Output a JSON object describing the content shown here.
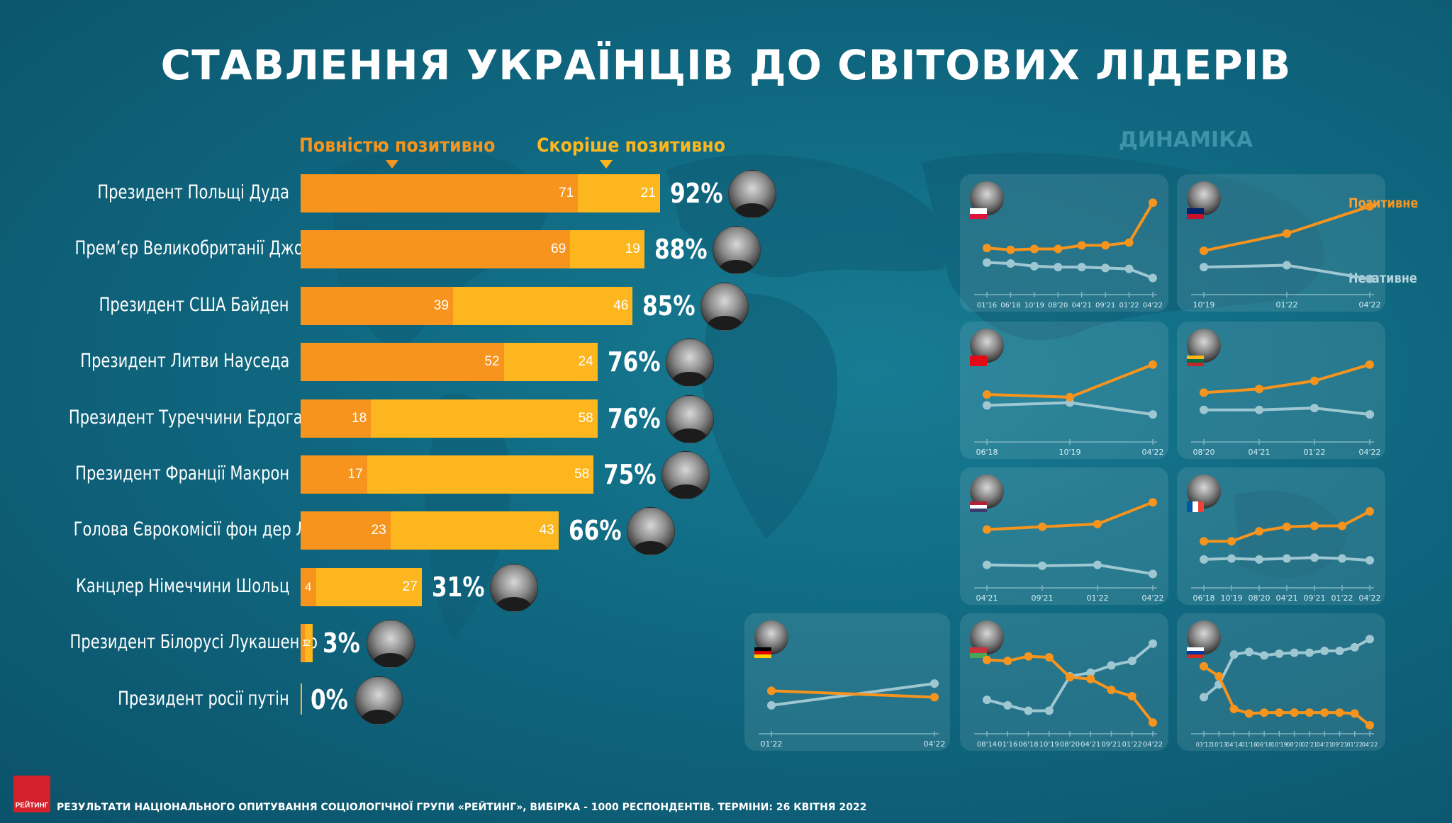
{
  "title": "СТАВЛЕННЯ УКРАЇНЦІВ ДО СВІТОВИХ ЛІДЕРІВ",
  "colors": {
    "fully_positive": "#f7941d",
    "rather_positive": "#fdb61e",
    "negative_line": "#9fc7d2",
    "positive_line": "#f7941d"
  },
  "chart_data": [
    {
      "type": "bar",
      "stacked": true,
      "orientation": "horizontal",
      "categories": [
        "Президент Польщі Дуда",
        "Прем’єр Великобританії Джонсон",
        "Президент США Байден",
        "Президент Литви Науседа",
        "Президент Туреччини Ердоган",
        "Президент Франції Макрон",
        "Голова Єврокомісії фон дер Ляєн",
        "Канцлер Німеччини Шольц",
        "Президент Білорусі Лукашенко",
        "Президент росії путін"
      ],
      "series": [
        {
          "name": "Повністю позитивно",
          "values": [
            71,
            69,
            39,
            52,
            18,
            17,
            23,
            4,
            1,
            0
          ]
        },
        {
          "name": "Скоріше позитивно",
          "values": [
            21,
            19,
            46,
            24,
            58,
            58,
            43,
            27,
            2,
            0
          ]
        }
      ],
      "totals": [
        "92%",
        "88%",
        "85%",
        "76%",
        "76%",
        "75%",
        "66%",
        "31%",
        "3%",
        "0%"
      ],
      "bar_labels": [
        [
          "71",
          "21"
        ],
        [
          "69",
          "19"
        ],
        [
          "39",
          "46"
        ],
        [
          "52",
          "24"
        ],
        [
          "18",
          "58"
        ],
        [
          "17",
          "58"
        ],
        [
          "23",
          "43"
        ],
        [
          "4",
          "27"
        ],
        [
          "1",
          "2"
        ],
        [
          "",
          ""
        ]
      ],
      "legend": [
        "Повністю позитивно",
        "Скоріше позитивно"
      ],
      "legend_position": "top"
    },
    {
      "type": "line",
      "section_title": "ДИНАМІКА",
      "legend": [
        "Позитивне",
        "Негативне"
      ],
      "legend_position": "top-right",
      "panels": [
        {
          "leader": "Duda",
          "flag": "poland",
          "x": [
            "01'16",
            "06'18",
            "10'19",
            "08'20",
            "04'21",
            "09'21",
            "01'22",
            "04'22"
          ],
          "positive": [
            42,
            40,
            41,
            41,
            45,
            45,
            48,
            92
          ],
          "negative": [
            26,
            25,
            22,
            21,
            21,
            20,
            19,
            9
          ]
        },
        {
          "leader": "Johnson",
          "flag": "uk",
          "x": [
            "10'19",
            "01'22",
            "04'22"
          ],
          "positive": [
            39,
            58,
            88
          ],
          "negative": [
            21,
            23,
            8
          ]
        },
        {
          "leader": "Erdogan",
          "flag": "turkey",
          "x": [
            "06'18",
            "10'19",
            "04'22"
          ],
          "positive": [
            43,
            40,
            76
          ],
          "negative": [
            31,
            34,
            21
          ]
        },
        {
          "leader": "Nauseda",
          "flag": "lithuania",
          "x": [
            "08'20",
            "04'21",
            "01'22",
            "04'22"
          ],
          "positive": [
            45,
            49,
            58,
            76
          ],
          "negative": [
            26,
            26,
            28,
            21
          ]
        },
        {
          "leader": "Biden",
          "flag": "usa",
          "x": [
            "04'21",
            "09'21",
            "01'22",
            "04'22"
          ],
          "positive": [
            55,
            58,
            61,
            85
          ],
          "negative": [
            16,
            15,
            16,
            6
          ]
        },
        {
          "leader": "Macron",
          "flag": "france",
          "x": [
            "06'18",
            "10'19",
            "08'20",
            "04'21",
            "09'21",
            "01'22",
            "04'22"
          ],
          "positive": [
            42,
            42,
            53,
            58,
            59,
            59,
            75
          ],
          "negative": [
            22,
            23,
            22,
            23,
            24,
            23,
            21
          ]
        },
        {
          "leader": "Scholz",
          "flag": "germany",
          "x": [
            "01'22",
            "04'22"
          ],
          "positive": [
            38,
            31
          ],
          "negative": [
            22,
            46
          ]
        },
        {
          "leader": "Lukashenko",
          "flag": "belarus",
          "x": [
            "08'14",
            "01'16",
            "06'18",
            "10'19",
            "08'20",
            "04'21",
            "09'21",
            "01'22",
            "04'22"
          ],
          "positive": [
            72,
            71,
            76,
            75,
            53,
            51,
            39,
            32,
            3
          ],
          "negative": [
            28,
            22,
            16,
            16,
            54,
            58,
            66,
            71,
            90
          ]
        },
        {
          "leader": "Putin",
          "flag": "russia",
          "x": [
            "03'12",
            "10'13",
            "04'14",
            "01'16",
            "06'18",
            "10'19",
            "08'20",
            "02'21",
            "04'21",
            "09'21",
            "01'22",
            "04'22"
          ],
          "positive": [
            65,
            54,
            18,
            13,
            14,
            14,
            14,
            14,
            14,
            14,
            13,
            0
          ],
          "negative": [
            31,
            45,
            78,
            81,
            77,
            79,
            80,
            80,
            82,
            82,
            86,
            95
          ]
        }
      ]
    }
  ],
  "footer": {
    "logo_text": "РЕЙТИНГ",
    "text": "РЕЗУЛЬТАТИ НАЦІОНАЛЬНОГО ОПИТУВАННЯ СОЦІОЛОГІЧНОЇ ГРУПИ «РЕЙТИНГ», ВИБІРКА - 1000 РЕСПОНДЕНТІВ. ТЕРМІНИ: 26 КВІТНЯ 2022"
  }
}
